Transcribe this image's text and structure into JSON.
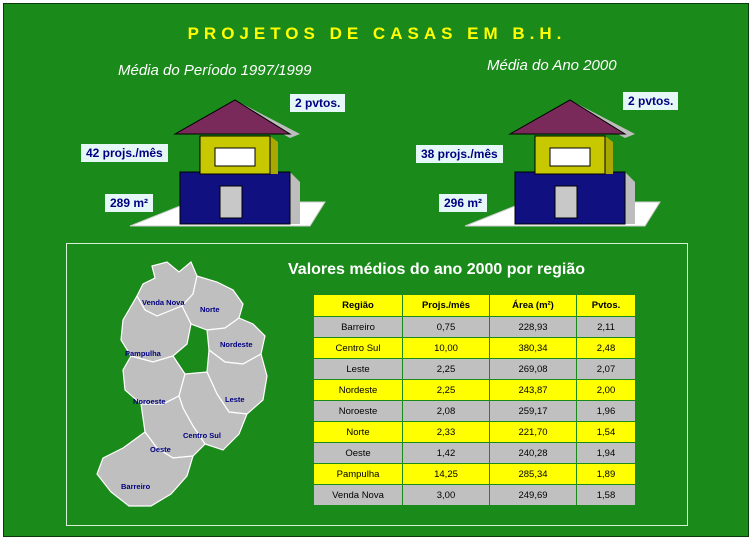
{
  "title": "PROJETOS DE CASAS EM B.H.",
  "left": {
    "subtitle": "Média do Período 1997/1999",
    "pavimentos": "2 pvtos.",
    "projetos": "42 projs./mês",
    "area": "289 m²"
  },
  "right": {
    "subtitle": "Média do Ano 2000",
    "pavimentos": "2 pvtos.",
    "projetos": "38 projs./mês",
    "area": "296 m²"
  },
  "panel": {
    "title": "Valores médios do ano 2000 por região"
  },
  "map_labels": {
    "venda_nova": "Venda Nova",
    "norte": "Norte",
    "nordeste": "Nordeste",
    "pampulha": "Pampulha",
    "noroeste": "Noroeste",
    "leste": "Leste",
    "centro_sul": "Centro Sul",
    "oeste": "Oeste",
    "barreiro": "Barreiro"
  },
  "table": {
    "headers": [
      "Região",
      "Projs./mês",
      "Área (m²)",
      "Pvtos."
    ],
    "rows": [
      [
        "Barreiro",
        "0,75",
        "228,93",
        "2,11"
      ],
      [
        "Centro Sul",
        "10,00",
        "380,34",
        "2,48"
      ],
      [
        "Leste",
        "2,25",
        "269,08",
        "2,07"
      ],
      [
        "Nordeste",
        "2,25",
        "243,87",
        "2,00"
      ],
      [
        "Noroeste",
        "2,08",
        "259,17",
        "1,96"
      ],
      [
        "Norte",
        "2,33",
        "221,70",
        "1,54"
      ],
      [
        "Oeste",
        "1,42",
        "240,28",
        "1,94"
      ],
      [
        "Pampulha",
        "14,25",
        "285,34",
        "1,89"
      ],
      [
        "Venda Nova",
        "3,00",
        "249,69",
        "1,58"
      ]
    ]
  },
  "colors": {
    "background": "#1a8a1a",
    "title": "#ffff00",
    "roof": "#7a2a5a",
    "upper_floor": "#c8c800",
    "lower_floor": "#101080",
    "label_bg": "#e6f7f7"
  }
}
